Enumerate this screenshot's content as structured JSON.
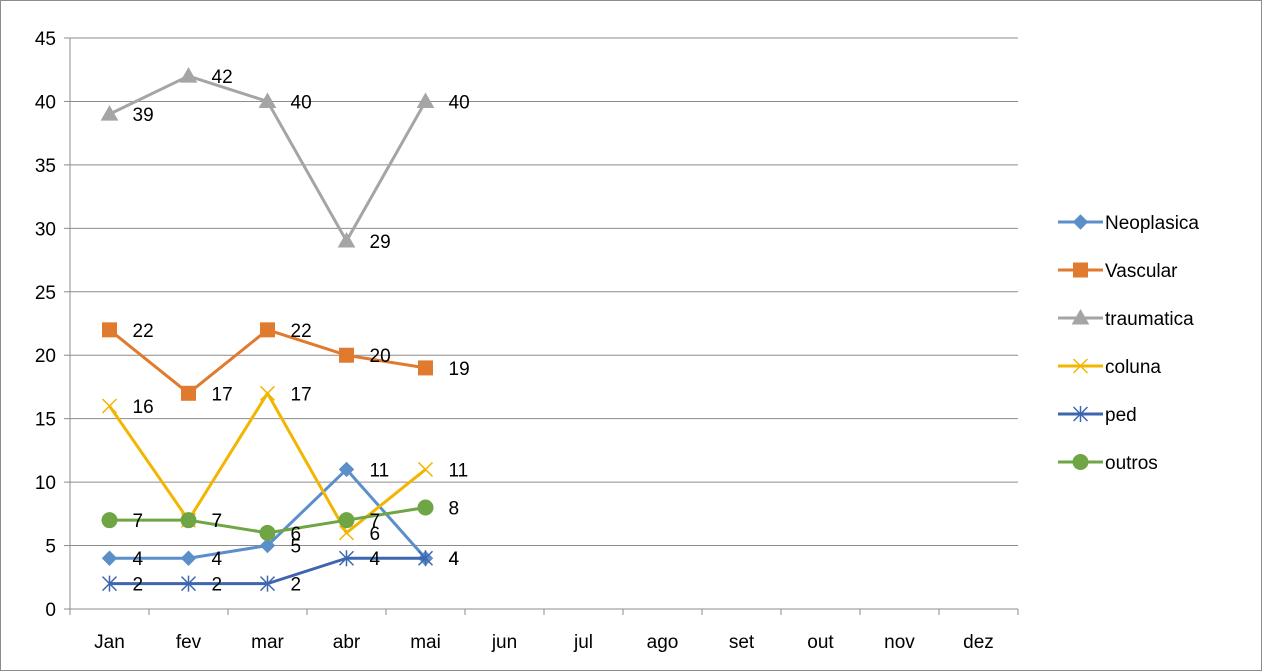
{
  "chart_data": {
    "type": "line",
    "title": "",
    "xlabel": "",
    "ylabel": "",
    "categories": [
      "Jan",
      "fev",
      "mar",
      "abr",
      "mai",
      "jun",
      "jul",
      "ago",
      "set",
      "out",
      "nov",
      "dez"
    ],
    "ylim": [
      0,
      45
    ],
    "yticks": [
      0,
      5,
      10,
      15,
      20,
      25,
      30,
      35,
      40,
      45
    ],
    "grid": true,
    "legend_position": "right",
    "series": [
      {
        "name": "Neoplasica",
        "color": "#5B8FC9",
        "marker": "diamond",
        "values": [
          4,
          4,
          5,
          11,
          4,
          null,
          null,
          null,
          null,
          null,
          null,
          null
        ]
      },
      {
        "name": "Vascular",
        "color": "#E07A2E",
        "marker": "square",
        "values": [
          22,
          17,
          22,
          20,
          19,
          null,
          null,
          null,
          null,
          null,
          null,
          null
        ]
      },
      {
        "name": "traumatica",
        "color": "#A5A5A5",
        "marker": "triangle",
        "values": [
          39,
          42,
          40,
          29,
          40,
          null,
          null,
          null,
          null,
          null,
          null,
          null
        ]
      },
      {
        "name": "coluna",
        "color": "#F2B500",
        "marker": "x",
        "values": [
          16,
          7,
          17,
          6,
          11,
          null,
          null,
          null,
          null,
          null,
          null,
          null
        ]
      },
      {
        "name": "ped",
        "color": "#3E66B0",
        "marker": "star",
        "values": [
          2,
          2,
          2,
          4,
          4,
          null,
          null,
          null,
          null,
          null,
          null,
          null
        ]
      },
      {
        "name": "outros",
        "color": "#6FA544",
        "marker": "circle",
        "values": [
          7,
          7,
          6,
          7,
          8,
          null,
          null,
          null,
          null,
          null,
          null,
          null
        ]
      }
    ]
  }
}
